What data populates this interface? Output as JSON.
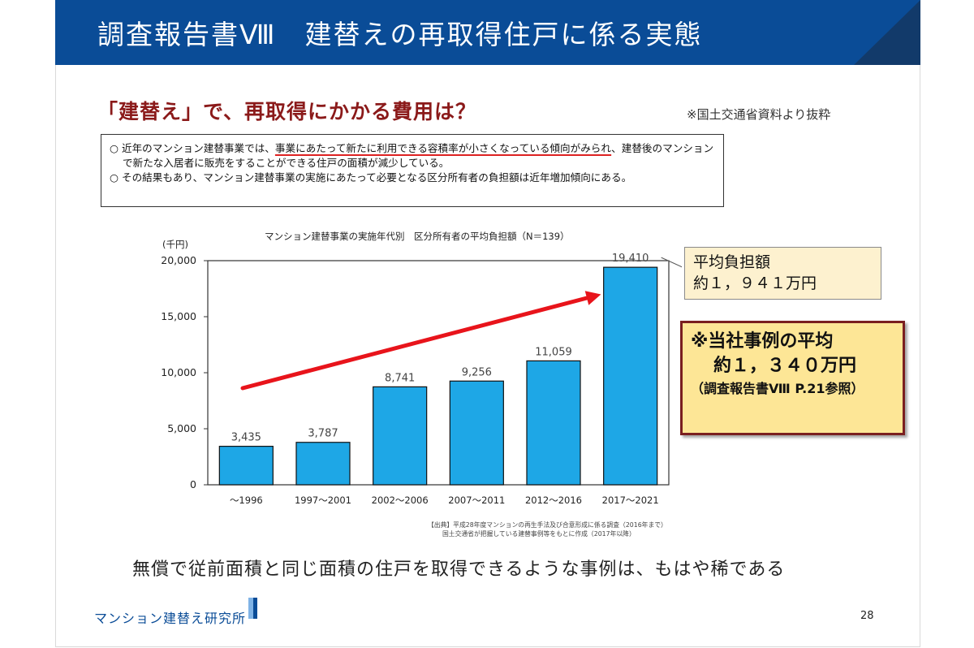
{
  "header": {
    "title": "調査報告書Ⅷ　建替えの再取得住戸に係る実態"
  },
  "heading": "「建替え」で、再取得にかかる費用は？",
  "source_note": "※国土交通省資料より抜粋",
  "summary": {
    "p1_prefix": "○ 近年のマンション建替事業では、",
    "p1_highlight": "事業にあたって新たに利用できる容積率が小さくなっている傾向がみられ",
    "p1_suffix": "、建替後のマンションで新たな入居者に販売をすることができる住戸の面積が減少している。",
    "p2": "○ その結果もあり、マンション建替事業の実施にあたって必要となる区分所有者の負担額は近年増加傾向にある。"
  },
  "chart_header": {
    "title": "マンション建替事業の実施年代別　区分所有者の平均負担額（N＝139）",
    "unit": "(千円)"
  },
  "chart_data": {
    "type": "bar",
    "categories": [
      "～1996",
      "1997～2001",
      "2002～2006",
      "2007～2011",
      "2012～2016",
      "2017～2021"
    ],
    "values": [
      3435,
      3787,
      8741,
      9256,
      11059,
      19410
    ],
    "value_labels": [
      "3,435",
      "3,787",
      "8,741",
      "9,256",
      "11,059",
      "19,410"
    ],
    "ylim": [
      0,
      20000
    ],
    "yticks": [
      0,
      5000,
      10000,
      15000,
      20000
    ],
    "ytick_labels": [
      "0",
      "5,000",
      "10,000",
      "15,000",
      "20,000"
    ],
    "bar_color": "#1ea7e6",
    "trend_arrow_color": "#e8141b",
    "grid": false
  },
  "callout_avg": {
    "line1": "平均負担額",
    "line2": "約１，９４１万円"
  },
  "callout_ours": {
    "line1": "※当社事例の平均",
    "line2": "約１，３４０万円",
    "line3": "（調査報告書Ⅷ P.21参照）"
  },
  "footnote": {
    "line1": "【出典】平成28年度マンションの再生手法及び合意形成に係る調査（2016年まで）",
    "line2": "国土交通省が把握している建替事例等をもとに作成（2017年以降）"
  },
  "conclusion": "無償で従前面積と同じ面積の住戸を取得できるような事例は、もはや稀である",
  "footer": {
    "logo_text": "マンション建替え研究所",
    "page_number": "28"
  },
  "colors": {
    "title_bar": "#0a4c97",
    "heading": "#8b1a1a",
    "callout_border": "#7a1f1f",
    "callout_fill": "#fde696"
  }
}
